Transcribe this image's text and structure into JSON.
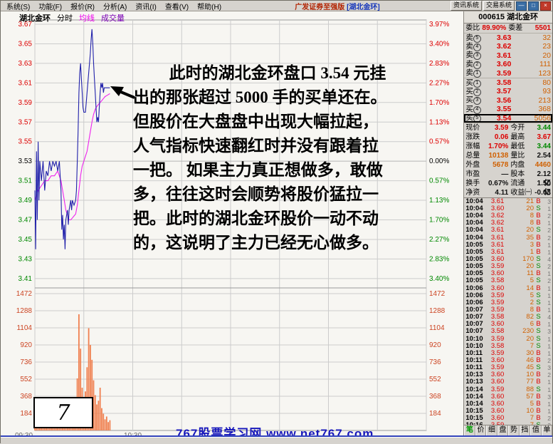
{
  "window": {
    "menu_items": [
      "系统(S)",
      "功能(F)",
      "报价(R)",
      "分析(A)",
      "资讯(I)",
      "查看(V)",
      "帮助(H)"
    ],
    "title": "广发证券至强版",
    "title_stock": "[湖北金环]",
    "sys_buttons": [
      "资讯系统",
      "交易系统"
    ],
    "window_controls": [
      "—",
      "□",
      "×"
    ]
  },
  "chart": {
    "legend": {
      "stock": "湖北金环",
      "tab_fenshi": "分时",
      "tab_junxian": "均线",
      "tab_chengjiaoliang": "成交量"
    },
    "annotation_lines": [
      "此时的湖北金环盘口 3.54 元挂",
      "出的那张超过 5000 手的买单还在。",
      "但股价在大盘盘中出现大幅拉起，",
      "人气指标快速翻红时并没有跟着拉",
      "一把。 如果主力真正想做多，敢做",
      "多，往往这时会顺势将股价猛拉一",
      "把。此时的湖北金环股价一动不动",
      "的，这说明了主力已经无心做多。"
    ],
    "page_number": "7",
    "branding": "767股票学习网 www.net767.com"
  },
  "chart_data": {
    "type": "line",
    "title": "湖北金环 000615 分时走势",
    "x_axis": {
      "session": "09:30-15:00",
      "range_minutes": [
        0,
        240
      ],
      "grid_step_minutes": 30,
      "labels": [
        {
          "t": 0,
          "label": "09:30"
        },
        {
          "t": 60,
          "label": "10:30"
        }
      ]
    },
    "price_axis": {
      "top": 3.67,
      "bottom": 3.41,
      "step": 0.02,
      "prev_close": 3.53,
      "zero_index": 7,
      "labels_left": [
        "3.67",
        "3.65",
        "3.63",
        "3.61",
        "3.59",
        "3.57",
        "3.55",
        "3.53",
        "3.51",
        "3.49",
        "3.47",
        "3.45",
        "3.43",
        "3.41"
      ],
      "labels_right_pct": [
        "3.97%",
        "3.40%",
        "2.83%",
        "2.27%",
        "1.70%",
        "1.13%",
        "0.57%",
        "0.00%",
        "0.57%",
        "1.13%",
        "1.70%",
        "2.27%",
        "2.83%",
        "3.40%"
      ]
    },
    "volume_axis": {
      "max": 1472,
      "labels": [
        "1472",
        "1288",
        "1104",
        "920",
        "736",
        "552",
        "368",
        "184"
      ]
    },
    "series": [
      {
        "name": "price",
        "color": "#2020aa",
        "points": [
          [
            0,
            3.5
          ],
          [
            0.5,
            3.44
          ],
          [
            1,
            3.54
          ],
          [
            1.5,
            3.47
          ],
          [
            2,
            3.55
          ],
          [
            2.5,
            3.49
          ],
          [
            3,
            3.53
          ],
          [
            4,
            3.51
          ],
          [
            5,
            3.53
          ],
          [
            6,
            3.5
          ],
          [
            7,
            3.52
          ],
          [
            8,
            3.515
          ],
          [
            9,
            3.53
          ],
          [
            10,
            3.52
          ],
          [
            11,
            3.53
          ],
          [
            12,
            3.525
          ],
          [
            13,
            3.53
          ],
          [
            14,
            3.52
          ],
          [
            15,
            3.53
          ],
          [
            16,
            3.5
          ],
          [
            16.5,
            3.46
          ],
          [
            17,
            3.475
          ],
          [
            17.5,
            3.45
          ],
          [
            18,
            3.465
          ],
          [
            18.5,
            3.44
          ],
          [
            19,
            3.47
          ],
          [
            20,
            3.48
          ],
          [
            20.5,
            3.465
          ],
          [
            21,
            3.48
          ],
          [
            22,
            3.49
          ],
          [
            22.5,
            3.48
          ],
          [
            23,
            3.49
          ],
          [
            24,
            3.485
          ],
          [
            25,
            3.49
          ],
          [
            25.5,
            3.5
          ],
          [
            26,
            3.53
          ],
          [
            26.5,
            3.56
          ],
          [
            27,
            3.6
          ],
          [
            27.5,
            3.62
          ],
          [
            28,
            3.63
          ],
          [
            28.5,
            3.615
          ],
          [
            29,
            3.6
          ],
          [
            29.5,
            3.585
          ],
          [
            30,
            3.58
          ],
          [
            31,
            3.58
          ],
          [
            31.5,
            3.59
          ],
          [
            32,
            3.6
          ],
          [
            33,
            3.62
          ],
          [
            34,
            3.64
          ],
          [
            34.5,
            3.655
          ],
          [
            35,
            3.665
          ],
          [
            35.5,
            3.65
          ],
          [
            36,
            3.63
          ],
          [
            36.5,
            3.615
          ],
          [
            37,
            3.6
          ],
          [
            37.5,
            3.585
          ],
          [
            38,
            3.57
          ],
          [
            38.5,
            3.575
          ],
          [
            39,
            3.57
          ],
          [
            39.5,
            3.585
          ],
          [
            40,
            3.6
          ],
          [
            40.5,
            3.61
          ],
          [
            41,
            3.605
          ],
          [
            41.5,
            3.61
          ],
          [
            42,
            3.6
          ],
          [
            42.5,
            3.605
          ],
          [
            43,
            3.605
          ],
          [
            44,
            3.605
          ],
          [
            45,
            3.605
          ],
          [
            46,
            3.605
          ]
        ]
      },
      {
        "name": "average",
        "color": "#ee22ee",
        "points": [
          [
            0,
            3.49
          ],
          [
            2,
            3.5
          ],
          [
            4,
            3.505
          ],
          [
            6,
            3.51
          ],
          [
            8,
            3.51
          ],
          [
            10,
            3.515
          ],
          [
            12,
            3.515
          ],
          [
            14,
            3.52
          ],
          [
            16,
            3.51
          ],
          [
            17,
            3.5
          ],
          [
            18,
            3.49
          ],
          [
            19,
            3.48
          ],
          [
            20,
            3.475
          ],
          [
            21,
            3.47
          ],
          [
            22,
            3.47
          ],
          [
            23,
            3.472
          ],
          [
            24,
            3.474
          ],
          [
            25,
            3.476
          ],
          [
            26,
            3.485
          ],
          [
            27,
            3.5
          ],
          [
            28,
            3.515
          ],
          [
            29,
            3.525
          ],
          [
            30,
            3.53
          ],
          [
            31,
            3.535
          ],
          [
            32,
            3.54
          ],
          [
            33,
            3.55
          ],
          [
            34,
            3.56
          ],
          [
            35,
            3.57
          ],
          [
            36,
            3.578
          ],
          [
            37,
            3.583
          ],
          [
            38,
            3.586
          ],
          [
            39,
            3.588
          ],
          [
            40,
            3.59
          ],
          [
            41,
            3.592
          ],
          [
            42,
            3.594
          ],
          [
            43,
            3.596
          ],
          [
            44,
            3.597
          ],
          [
            45,
            3.598
          ],
          [
            46,
            3.599
          ]
        ]
      },
      {
        "name": "volume",
        "color": "#f08050",
        "values": [
          120,
          260,
          180,
          90,
          140,
          70,
          60,
          110,
          50,
          80,
          60,
          100,
          70,
          90,
          120,
          150,
          180,
          220,
          160,
          90,
          70,
          110,
          80,
          60,
          90,
          130,
          560,
          1250,
          880,
          460,
          300,
          420,
          680,
          1100,
          920,
          760,
          540,
          380,
          280,
          320,
          460,
          240,
          180,
          120,
          150,
          90,
          110
        ]
      }
    ],
    "colors": {
      "up": "#dd0000",
      "down": "#008800",
      "zero": "#000000",
      "grid": "#cccccc",
      "border": "#999999",
      "vol_label": "#cc4422",
      "bg": "#f7f6f2"
    }
  },
  "quote_panel": {
    "header": "000615 湖北金环",
    "weibi_label": "委比",
    "weibi": "89.90%",
    "weicha_label": "委差",
    "weicha": "5501",
    "ask_label": "卖",
    "bid_label": "买",
    "asks": [
      {
        "n": "5",
        "price": "3.63",
        "vol": "32"
      },
      {
        "n": "4",
        "price": "3.62",
        "vol": "23"
      },
      {
        "n": "3",
        "price": "3.61",
        "vol": "20"
      },
      {
        "n": "2",
        "price": "3.60",
        "vol": "111"
      },
      {
        "n": "1",
        "price": "3.59",
        "vol": "123"
      }
    ],
    "bids": [
      {
        "n": "1",
        "price": "3.58",
        "vol": "80"
      },
      {
        "n": "2",
        "price": "3.57",
        "vol": "93"
      },
      {
        "n": "3",
        "price": "3.56",
        "vol": "213"
      },
      {
        "n": "4",
        "price": "3.55",
        "vol": "368"
      },
      {
        "n": "5",
        "price": "3.54",
        "vol": "5056",
        "highlight": true
      }
    ],
    "stats": [
      {
        "l1": "现价",
        "v1": "3.59",
        "k1": "up",
        "l2": "今开",
        "v2": "3.44",
        "k2": "down"
      },
      {
        "l1": "涨跌",
        "v1": "0.06",
        "k1": "up",
        "l2": "最高",
        "v2": "3.67",
        "k2": "up"
      },
      {
        "l1": "涨幅",
        "v1": "1.70%",
        "k1": "up",
        "l2": "最低",
        "v2": "3.44",
        "k2": "down"
      },
      {
        "l1": "总量",
        "v1": "10138",
        "k1": "volc",
        "l2": "量比",
        "v2": "2.54",
        "k2": "flat"
      },
      {
        "l1": "外盘",
        "v1": "5678",
        "k1": "volc",
        "l2": "内盘",
        "v2": "4460",
        "k2": "volc"
      },
      {
        "l1": "市盈",
        "v1": "—",
        "k1": "flat",
        "l2": "股本",
        "v2": "2.12亿",
        "k2": "flat"
      },
      {
        "l1": "换手",
        "v1": "0.67%",
        "k1": "flat",
        "l2": "流通",
        "v2": "1.50亿",
        "k2": "flat"
      },
      {
        "l1": "净资",
        "v1": "4.11",
        "k1": "flat",
        "l2": "收益㈠",
        "v2": "-0.03",
        "k2": "flat"
      }
    ],
    "trades": [
      {
        "time": "10:04",
        "price": "3.61",
        "vol": "21",
        "side": "B",
        "n": "3"
      },
      {
        "time": "10:04",
        "price": "3.60",
        "vol": "20",
        "side": "S",
        "n": "1"
      },
      {
        "time": "10:04",
        "price": "3.62",
        "vol": "8",
        "side": "B",
        "n": "2"
      },
      {
        "time": "10:04",
        "price": "3.62",
        "vol": "8",
        "side": "B",
        "n": "1"
      },
      {
        "time": "10:04",
        "price": "3.61",
        "vol": "20",
        "side": "S",
        "n": "2"
      },
      {
        "time": "10:04",
        "price": "3.61",
        "vol": "35",
        "side": "B",
        "n": "2"
      },
      {
        "time": "10:05",
        "price": "3.61",
        "vol": "3",
        "side": "B",
        "n": "1"
      },
      {
        "time": "10:05",
        "price": "3.61",
        "vol": "1",
        "side": "B",
        "n": "1"
      },
      {
        "time": "10:05",
        "price": "3.60",
        "vol": "170",
        "side": "S",
        "n": "4"
      },
      {
        "time": "10:05",
        "price": "3.59",
        "vol": "20",
        "side": "S",
        "n": "2"
      },
      {
        "time": "10:05",
        "price": "3.60",
        "vol": "11",
        "side": "B",
        "n": "1"
      },
      {
        "time": "10:05",
        "price": "3.58",
        "vol": "5",
        "side": "S",
        "n": "2"
      },
      {
        "time": "10:06",
        "price": "3.60",
        "vol": "14",
        "side": "B",
        "n": "1"
      },
      {
        "time": "10:06",
        "price": "3.59",
        "vol": "5",
        "side": "S",
        "n": "1"
      },
      {
        "time": "10:06",
        "price": "3.59",
        "vol": "2",
        "side": "S",
        "n": "1"
      },
      {
        "time": "10:07",
        "price": "3.59",
        "vol": "8",
        "side": "B",
        "n": "1"
      },
      {
        "time": "10:07",
        "price": "3.58",
        "vol": "82",
        "side": "S",
        "n": "4"
      },
      {
        "time": "10:07",
        "price": "3.60",
        "vol": "6",
        "side": "B",
        "n": "1"
      },
      {
        "time": "10:07",
        "price": "3.58",
        "vol": "230",
        "side": "S",
        "n": "3"
      },
      {
        "time": "10:10",
        "price": "3.59",
        "vol": "20",
        "side": "S",
        "n": "1"
      },
      {
        "time": "10:10",
        "price": "3.58",
        "vol": "7",
        "side": "S",
        "n": "1"
      },
      {
        "time": "10:11",
        "price": "3.59",
        "vol": "30",
        "side": "B",
        "n": "1"
      },
      {
        "time": "10:11",
        "price": "3.60",
        "vol": "46",
        "side": "B",
        "n": "2"
      },
      {
        "time": "10:11",
        "price": "3.59",
        "vol": "45",
        "side": "S",
        "n": "3"
      },
      {
        "time": "10:13",
        "price": "3.60",
        "vol": "10",
        "side": "B",
        "n": "2"
      },
      {
        "time": "10:13",
        "price": "3.60",
        "vol": "77",
        "side": "B",
        "n": "1"
      },
      {
        "time": "10:14",
        "price": "3.59",
        "vol": "88",
        "side": "S",
        "n": "1"
      },
      {
        "time": "10:14",
        "price": "3.60",
        "vol": "57",
        "side": "B",
        "n": "3"
      },
      {
        "time": "10:14",
        "price": "3.60",
        "vol": "5",
        "side": "B",
        "n": "1"
      },
      {
        "time": "10:15",
        "price": "3.60",
        "vol": "10",
        "side": "B",
        "n": "1"
      },
      {
        "time": "10:15",
        "price": "3.60",
        "vol": "7",
        "side": "B",
        "n": "2"
      },
      {
        "time": "10:16",
        "price": "3.59",
        "vol": "7",
        "side": "S",
        "n": "2"
      }
    ],
    "tabs": [
      "笔",
      "价",
      "细",
      "盘",
      "势",
      "挡",
      "值",
      "单"
    ],
    "active_tab": "笔"
  }
}
